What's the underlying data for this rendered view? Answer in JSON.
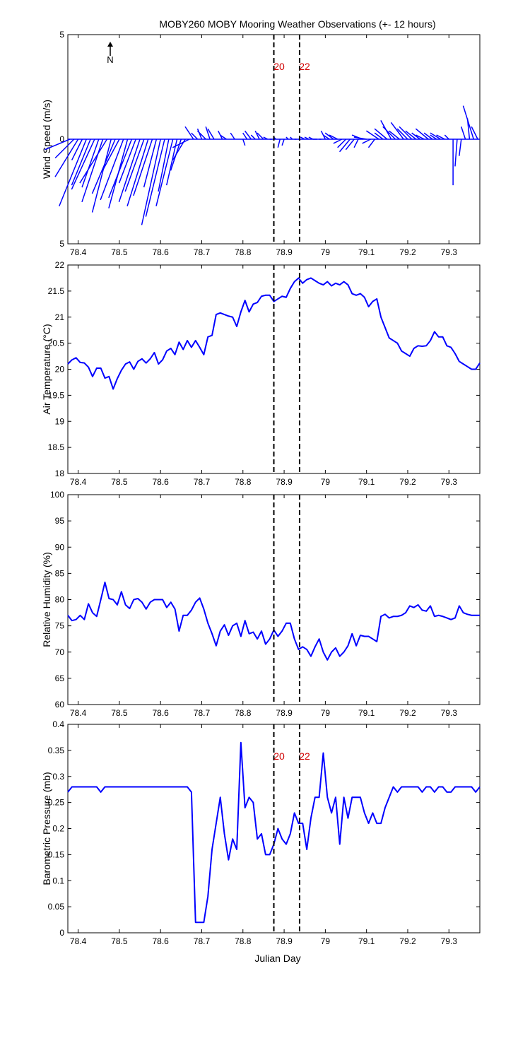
{
  "title": "MOBY260 MOBY Mooring Weather Observations (+- 12 hours)",
  "x_ticks": [
    "78.4",
    "78.5",
    "78.6",
    "78.7",
    "78.8",
    "78.9",
    "79",
    "79.1",
    "79.2",
    "79.3"
  ],
  "xlabel": "Julian Day",
  "marker_labels": [
    "20",
    "22"
  ],
  "marker_x": [
    78.875,
    78.9375
  ],
  "north_label": "N",
  "colors": {
    "series": "#0000ff",
    "marker": "#000000",
    "marker_text": "#ff0000",
    "axis": "#000000"
  },
  "chart_data": [
    {
      "type": "quiver",
      "name": "wind",
      "ylabel": "Wind Speed (m/s)",
      "y_ticks": [
        "5",
        "0",
        "5"
      ],
      "ylim": [
        -5,
        5
      ],
      "xlim": [
        78.375,
        79.375
      ],
      "arrows": [
        [
          78.38,
          -1.2,
          -0.5
        ],
        [
          78.39,
          -0.9,
          -0.9
        ],
        [
          78.4,
          -1.1,
          -1.8
        ],
        [
          78.41,
          -0.5,
          -1.0
        ],
        [
          78.42,
          -1.3,
          -3.2
        ],
        [
          78.43,
          -0.9,
          -2.2
        ],
        [
          78.44,
          -1.1,
          -2.4
        ],
        [
          78.45,
          -0.8,
          -2.3
        ],
        [
          78.46,
          -1.0,
          -3.0
        ],
        [
          78.47,
          -1.3,
          -2.1
        ],
        [
          78.48,
          -0.9,
          -3.5
        ],
        [
          78.49,
          -1.1,
          -2.6
        ],
        [
          78.5,
          -0.8,
          -1.5
        ],
        [
          78.51,
          -1.1,
          -2.9
        ],
        [
          78.52,
          -0.9,
          -3.3
        ],
        [
          78.53,
          -1.1,
          -2.8
        ],
        [
          78.54,
          -0.8,
          -2.1
        ],
        [
          78.55,
          -1.0,
          -3.0
        ],
        [
          78.56,
          -0.9,
          -2.5
        ],
        [
          78.57,
          -1.0,
          -3.2
        ],
        [
          78.58,
          -0.9,
          -2.7
        ],
        [
          78.59,
          -0.6,
          -2.3
        ],
        [
          78.6,
          -0.9,
          -4.1
        ],
        [
          78.61,
          -0.9,
          -3.7
        ],
        [
          78.62,
          -0.5,
          -2.5
        ],
        [
          78.63,
          -0.8,
          -3.2
        ],
        [
          78.64,
          -0.5,
          -2.2
        ],
        [
          78.65,
          -0.5,
          -1.5
        ],
        [
          78.66,
          -0.6,
          -1.0
        ],
        [
          78.67,
          -0.8,
          -0.4
        ],
        [
          78.68,
          -0.4,
          0.6
        ],
        [
          78.69,
          -0.3,
          0.3
        ],
        [
          78.7,
          -0.2,
          0.5
        ],
        [
          78.71,
          -0.4,
          0.4
        ],
        [
          78.72,
          -0.2,
          0.6
        ],
        [
          78.73,
          -0.3,
          0.5
        ],
        [
          78.75,
          -0.2,
          0.4
        ],
        [
          78.76,
          -0.3,
          0.2
        ],
        [
          78.78,
          -0.2,
          0.3
        ],
        [
          78.8,
          0.1,
          -0.3
        ],
        [
          78.81,
          -0.2,
          0.3
        ],
        [
          78.82,
          -0.3,
          0.4
        ],
        [
          78.83,
          -0.2,
          0.2
        ],
        [
          78.84,
          -0.2,
          0.4
        ],
        [
          78.85,
          -0.3,
          0.3
        ],
        [
          78.86,
          -0.2,
          0.1
        ],
        [
          78.87,
          -0.1,
          0.0
        ],
        [
          78.88,
          -0.1,
          0.1
        ],
        [
          78.89,
          -0.1,
          -0.4
        ],
        [
          78.9,
          -0.1,
          -0.3
        ],
        [
          78.91,
          -0.1,
          0.1
        ],
        [
          78.92,
          -0.1,
          0.1
        ],
        [
          78.93,
          -0.1,
          0.0
        ],
        [
          78.94,
          -0.1,
          0.0
        ],
        [
          78.95,
          -0.2,
          0.1
        ],
        [
          78.96,
          -0.2,
          0.1
        ],
        [
          78.97,
          -0.2,
          0.1
        ],
        [
          78.98,
          -0.2,
          0.0
        ],
        [
          78.99,
          -0.1,
          0.0
        ],
        [
          79.0,
          -0.2,
          0.4
        ],
        [
          79.01,
          -0.3,
          0.2
        ],
        [
          79.02,
          -0.4,
          0.3
        ],
        [
          79.03,
          -0.4,
          0.2
        ],
        [
          79.04,
          -0.4,
          -0.2
        ],
        [
          79.05,
          -0.4,
          -0.4
        ],
        [
          79.06,
          -0.5,
          -0.6
        ],
        [
          79.07,
          -0.4,
          -0.5
        ],
        [
          79.08,
          -0.2,
          -0.4
        ],
        [
          79.09,
          -0.5,
          0.2
        ],
        [
          79.1,
          -0.6,
          0.1
        ],
        [
          79.11,
          -0.4,
          -0.2
        ],
        [
          79.12,
          -0.3,
          -0.4
        ],
        [
          79.13,
          -0.6,
          0.4
        ],
        [
          79.14,
          -0.4,
          0.3
        ],
        [
          79.15,
          -0.6,
          0.5
        ],
        [
          79.16,
          -0.5,
          0.9
        ],
        [
          79.17,
          -0.6,
          0.6
        ],
        [
          79.18,
          -0.5,
          0.4
        ],
        [
          79.19,
          -0.6,
          0.8
        ],
        [
          79.2,
          -0.5,
          0.5
        ],
        [
          79.21,
          -0.6,
          0.6
        ],
        [
          79.22,
          -0.5,
          0.4
        ],
        [
          79.23,
          -0.4,
          0.3
        ],
        [
          79.24,
          -0.4,
          0.2
        ],
        [
          79.25,
          -0.6,
          0.5
        ],
        [
          79.26,
          -0.4,
          0.3
        ],
        [
          79.27,
          -0.3,
          0.2
        ],
        [
          79.28,
          -0.5,
          0.3
        ],
        [
          79.29,
          -0.4,
          0.2
        ],
        [
          79.3,
          -0.2,
          0.2
        ],
        [
          79.31,
          0.0,
          -2.2
        ],
        [
          79.32,
          -0.1,
          -1.3
        ],
        [
          79.33,
          -0.1,
          -0.8
        ],
        [
          79.34,
          -0.2,
          0.6
        ],
        [
          79.35,
          -0.1,
          1.0
        ],
        [
          79.36,
          -0.5,
          1.6
        ],
        [
          79.37,
          -0.3,
          0.6
        ]
      ]
    },
    {
      "type": "line",
      "name": "air_temperature",
      "ylabel": "Air Temperature (°C)",
      "y_ticks": [
        "22",
        "21.5",
        "21",
        "20.5",
        "20",
        "19.5",
        "19",
        "18.5",
        "18"
      ],
      "ylim": [
        18,
        22
      ],
      "xlim": [
        78.375,
        79.375
      ],
      "x": [
        78.375,
        78.385,
        78.395,
        78.405,
        78.415,
        78.425,
        78.435,
        78.445,
        78.455,
        78.465,
        78.475,
        78.485,
        78.495,
        78.505,
        78.515,
        78.525,
        78.535,
        78.545,
        78.555,
        78.565,
        78.575,
        78.585,
        78.595,
        78.605,
        78.615,
        78.625,
        78.635,
        78.645,
        78.655,
        78.665,
        78.675,
        78.685,
        78.695,
        78.705,
        78.715,
        78.725,
        78.735,
        78.745,
        78.755,
        78.765,
        78.775,
        78.785,
        78.795,
        78.805,
        78.815,
        78.825,
        78.835,
        78.845,
        78.855,
        78.865,
        78.875,
        78.885,
        78.895,
        78.905,
        78.915,
        78.925,
        78.935,
        78.945,
        78.955,
        78.965,
        78.975,
        78.985,
        78.995,
        79.005,
        79.015,
        79.025,
        79.035,
        79.045,
        79.055,
        79.065,
        79.075,
        79.085,
        79.095,
        79.105,
        79.115,
        79.125,
        79.135,
        79.145,
        79.155,
        79.165,
        79.175,
        79.185,
        79.195,
        79.205,
        79.215,
        79.225,
        79.235,
        79.245,
        79.255,
        79.265,
        79.275,
        79.285,
        79.295,
        79.305,
        79.315,
        79.325,
        79.335,
        79.345,
        79.355,
        79.365,
        79.375
      ],
      "values": [
        20.1,
        20.18,
        20.22,
        20.13,
        20.12,
        20.04,
        19.86,
        20.02,
        20.02,
        19.83,
        19.86,
        19.62,
        19.82,
        19.98,
        20.1,
        20.14,
        20.0,
        20.15,
        20.2,
        20.12,
        20.2,
        20.32,
        20.1,
        20.18,
        20.35,
        20.4,
        20.28,
        20.52,
        20.38,
        20.55,
        20.42,
        20.55,
        20.42,
        20.28,
        20.62,
        20.65,
        21.05,
        21.08,
        21.05,
        21.02,
        21.0,
        20.82,
        21.1,
        21.32,
        21.1,
        21.25,
        21.28,
        21.4,
        21.42,
        21.42,
        21.3,
        21.35,
        21.4,
        21.38,
        21.55,
        21.68,
        21.75,
        21.65,
        21.72,
        21.75,
        21.7,
        21.65,
        21.62,
        21.68,
        21.6,
        21.65,
        21.62,
        21.68,
        21.62,
        21.45,
        21.42,
        21.45,
        21.38,
        21.2,
        21.3,
        21.35,
        21.0,
        20.8,
        20.6,
        20.55,
        20.5,
        20.35,
        20.3,
        20.25,
        20.4,
        20.45,
        20.44,
        20.45,
        20.55,
        20.72,
        20.62,
        20.62,
        20.45,
        20.42,
        20.3,
        20.15,
        20.1,
        20.05,
        20.0,
        20.0,
        20.12
      ]
    },
    {
      "type": "line",
      "name": "relative_humidity",
      "ylabel": "Relative Humidity (%)",
      "y_ticks": [
        "100",
        "95",
        "90",
        "85",
        "80",
        "75",
        "70",
        "65",
        "60"
      ],
      "ylim": [
        60,
        100
      ],
      "xlim": [
        78.375,
        79.375
      ],
      "x": [
        78.375,
        78.385,
        78.395,
        78.405,
        78.415,
        78.425,
        78.435,
        78.445,
        78.455,
        78.465,
        78.475,
        78.485,
        78.495,
        78.505,
        78.515,
        78.525,
        78.535,
        78.545,
        78.555,
        78.565,
        78.575,
        78.585,
        78.595,
        78.605,
        78.615,
        78.625,
        78.635,
        78.645,
        78.655,
        78.665,
        78.675,
        78.685,
        78.695,
        78.705,
        78.715,
        78.725,
        78.735,
        78.745,
        78.755,
        78.765,
        78.775,
        78.785,
        78.795,
        78.805,
        78.815,
        78.825,
        78.835,
        78.845,
        78.855,
        78.865,
        78.875,
        78.885,
        78.895,
        78.905,
        78.915,
        78.925,
        78.935,
        78.945,
        78.955,
        78.965,
        78.975,
        78.985,
        78.995,
        79.005,
        79.015,
        79.025,
        79.035,
        79.045,
        79.055,
        79.065,
        79.075,
        79.085,
        79.095,
        79.105,
        79.115,
        79.125,
        79.135,
        79.145,
        79.155,
        79.165,
        79.175,
        79.185,
        79.195,
        79.205,
        79.215,
        79.225,
        79.235,
        79.245,
        79.255,
        79.265,
        79.275,
        79.285,
        79.295,
        79.305,
        79.315,
        79.325,
        79.335,
        79.345,
        79.355,
        79.365,
        79.375
      ],
      "values": [
        77.0,
        76.0,
        76.2,
        77.0,
        76.2,
        79.2,
        77.5,
        76.8,
        80.0,
        83.3,
        80.2,
        80.0,
        79.0,
        81.5,
        79.0,
        78.3,
        80.0,
        80.2,
        79.5,
        78.2,
        79.5,
        80.0,
        80.0,
        80.0,
        78.5,
        79.5,
        78.2,
        74.0,
        77.0,
        77.0,
        78.0,
        79.5,
        80.3,
        78.2,
        75.5,
        73.5,
        71.2,
        74.0,
        75.2,
        73.2,
        75.0,
        75.5,
        73.0,
        76.0,
        73.5,
        73.8,
        72.5,
        74.0,
        71.5,
        72.5,
        74.2,
        73.0,
        74.0,
        75.5,
        75.5,
        72.5,
        70.5,
        71.0,
        70.5,
        69.2,
        71.0,
        72.5,
        70.0,
        68.5,
        70.0,
        70.8,
        69.2,
        70.0,
        71.2,
        73.5,
        71.2,
        73.2,
        73.0,
        73.0,
        72.5,
        72.0,
        76.8,
        77.2,
        76.5,
        76.8,
        76.8,
        77.0,
        77.5,
        78.8,
        78.5,
        79.0,
        78.0,
        77.8,
        78.8,
        76.8,
        77.0,
        76.8,
        76.5,
        76.2,
        76.5,
        78.8,
        77.5,
        77.2,
        77.0,
        77.0,
        77.0
      ]
    },
    {
      "type": "line",
      "name": "barometric_pressure",
      "ylabel": "Barometric Pressure (mb)",
      "y_ticks": [
        "0.4",
        "0.35",
        "0.3",
        "0.25",
        "0.2",
        "0.15",
        "0.1",
        "0.05",
        "0"
      ],
      "ylim": [
        0,
        0.4
      ],
      "xlim": [
        78.375,
        79.375
      ],
      "x": [
        78.375,
        78.385,
        78.395,
        78.405,
        78.415,
        78.425,
        78.435,
        78.445,
        78.455,
        78.465,
        78.475,
        78.485,
        78.495,
        78.505,
        78.515,
        78.525,
        78.535,
        78.545,
        78.555,
        78.565,
        78.575,
        78.585,
        78.595,
        78.605,
        78.615,
        78.625,
        78.635,
        78.645,
        78.655,
        78.665,
        78.675,
        78.685,
        78.695,
        78.705,
        78.715,
        78.725,
        78.735,
        78.745,
        78.755,
        78.765,
        78.775,
        78.785,
        78.795,
        78.805,
        78.815,
        78.825,
        78.835,
        78.845,
        78.855,
        78.865,
        78.875,
        78.885,
        78.895,
        78.905,
        78.915,
        78.925,
        78.935,
        78.945,
        78.955,
        78.965,
        78.975,
        78.985,
        78.995,
        79.005,
        79.015,
        79.025,
        79.035,
        79.045,
        79.055,
        79.065,
        79.075,
        79.085,
        79.095,
        79.105,
        79.115,
        79.125,
        79.135,
        79.145,
        79.155,
        79.165,
        79.175,
        79.185,
        79.195,
        79.205,
        79.215,
        79.225,
        79.235,
        79.245,
        79.255,
        79.265,
        79.275,
        79.285,
        79.295,
        79.305,
        79.315,
        79.325,
        79.335,
        79.345,
        79.355,
        79.365,
        79.375
      ],
      "values": [
        0.27,
        0.28,
        0.28,
        0.28,
        0.28,
        0.28,
        0.28,
        0.28,
        0.27,
        0.28,
        0.28,
        0.28,
        0.28,
        0.28,
        0.28,
        0.28,
        0.28,
        0.28,
        0.28,
        0.28,
        0.28,
        0.28,
        0.28,
        0.28,
        0.28,
        0.28,
        0.28,
        0.28,
        0.28,
        0.28,
        0.27,
        0.02,
        0.02,
        0.02,
        0.07,
        0.16,
        0.21,
        0.26,
        0.19,
        0.14,
        0.18,
        0.16,
        0.365,
        0.24,
        0.26,
        0.25,
        0.18,
        0.19,
        0.15,
        0.15,
        0.17,
        0.2,
        0.18,
        0.17,
        0.19,
        0.23,
        0.21,
        0.21,
        0.16,
        0.22,
        0.26,
        0.26,
        0.345,
        0.26,
        0.23,
        0.26,
        0.17,
        0.26,
        0.22,
        0.26,
        0.26,
        0.26,
        0.23,
        0.21,
        0.23,
        0.21,
        0.21,
        0.24,
        0.26,
        0.28,
        0.27,
        0.28,
        0.28,
        0.28,
        0.28,
        0.28,
        0.27,
        0.28,
        0.28,
        0.27,
        0.28,
        0.28,
        0.27,
        0.27,
        0.28,
        0.28,
        0.28,
        0.28,
        0.28,
        0.27,
        0.28
      ]
    }
  ]
}
